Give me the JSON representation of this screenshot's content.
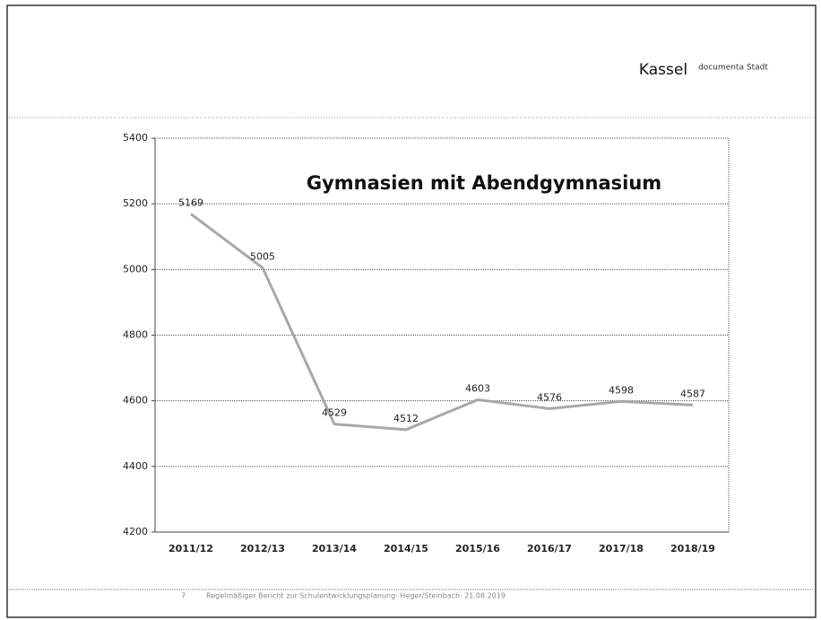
{
  "header": {
    "brand": "Kassel",
    "tagline": "documenta Stadt"
  },
  "footer": {
    "page": "7",
    "text": "Regelmäßiger Bericht zur Schulentwicklungsplanung· Heger/Steinbach· 21.08.2019"
  },
  "chart_data": {
    "type": "line",
    "title": "Gymnasien mit Abendgymnasium",
    "categories": [
      "2011/12",
      "2012/13",
      "2013/14",
      "2014/15",
      "2015/16",
      "2016/17",
      "2017/18",
      "2018/19"
    ],
    "values": [
      5169,
      5005,
      4529,
      4512,
      4603,
      4576,
      4598,
      4587
    ],
    "color": "#a8a8a8",
    "ylim": [
      4200,
      5400
    ],
    "yticks": [
      4200,
      4400,
      4600,
      4800,
      5000,
      5200,
      5400
    ],
    "grid": true
  }
}
